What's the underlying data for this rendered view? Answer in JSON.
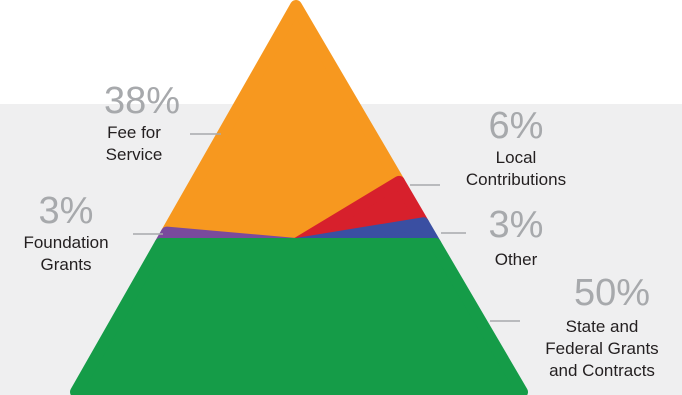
{
  "chart_data": {
    "type": "pie",
    "categories": [
      "Fee for Service",
      "Local Contributions",
      "Other",
      "State and Federal Grants and Contracts",
      "Foundation Grants"
    ],
    "values": [
      38,
      6,
      3,
      50,
      3
    ],
    "percent_labels": [
      "38%",
      "6%",
      "3%",
      "50%",
      "3%"
    ],
    "labels": [
      "Fee for\nService",
      "Local\nContributions",
      "Other",
      "State and\nFederal Grants\nand Contracts",
      "Foundation\nGrants"
    ],
    "title": "",
    "colors": [
      "#f7981f",
      "#d7202c",
      "#3a4fa2",
      "#159c48",
      "#7a4a9c"
    ],
    "legend": "none",
    "grid": false
  }
}
